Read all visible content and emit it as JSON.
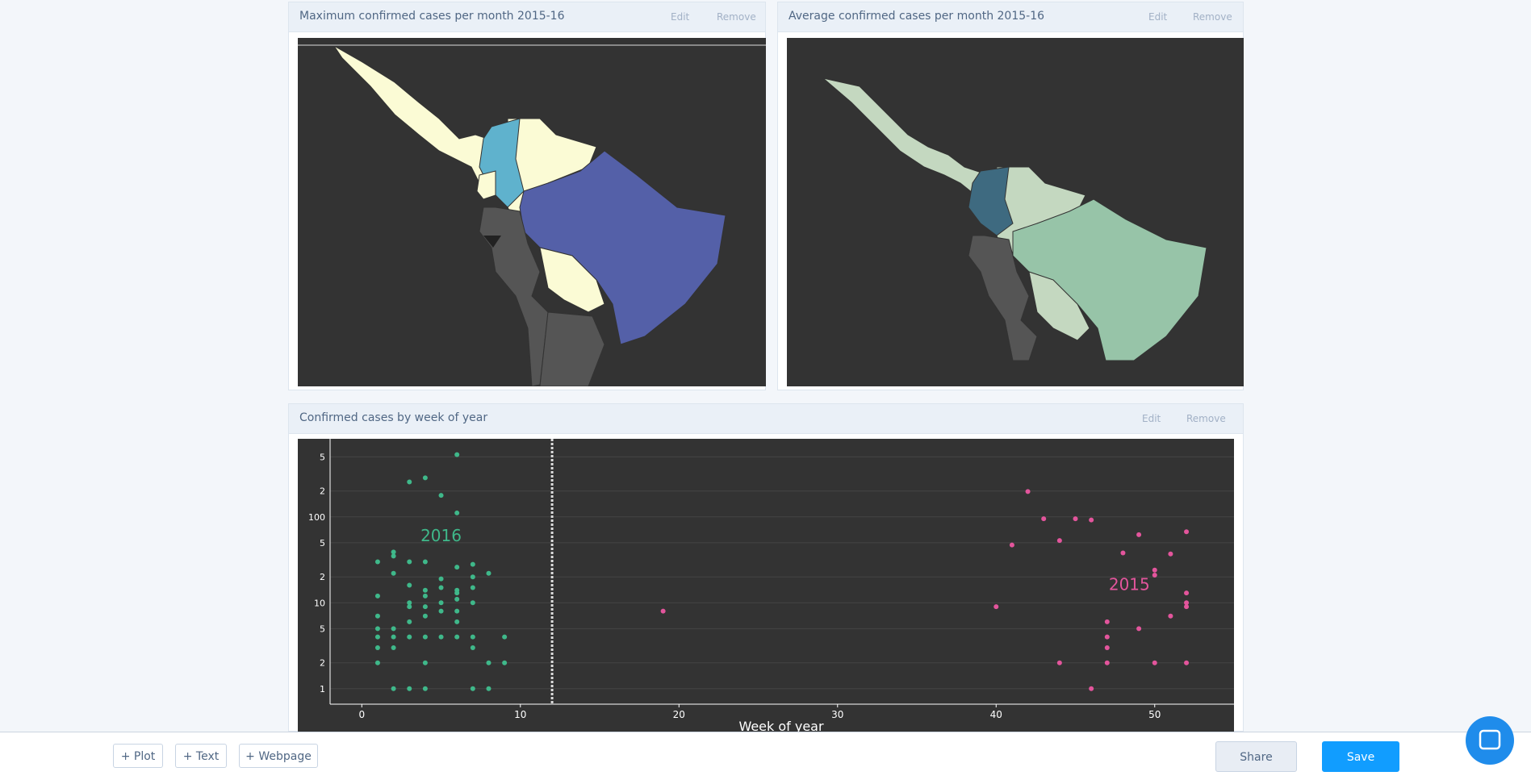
{
  "panels": [
    {
      "title": "Maximum confirmed cases per month 2015-16",
      "edit": "Edit",
      "remove": "Remove"
    },
    {
      "title": "Average confirmed cases per month 2015-16",
      "edit": "Edit",
      "remove": "Remove"
    },
    {
      "title": "Confirmed cases by week of year",
      "edit": "Edit",
      "remove": "Remove"
    }
  ],
  "chart_data": {
    "type": "scatter",
    "x_label": "Week of year",
    "log_y": true,
    "grid": true,
    "xlim": [
      -2,
      55
    ],
    "ylim": [
      0.66,
      810
    ],
    "xticks": [
      0,
      10,
      20,
      30,
      40,
      50
    ],
    "yticks": [
      1,
      2,
      5,
      10,
      {
        "value": 20,
        "label": "2"
      },
      {
        "value": 50,
        "label": "5"
      },
      100,
      {
        "value": 200,
        "label": "2"
      },
      {
        "value": 500,
        "label": "5"
      }
    ],
    "reference_line_x": 12,
    "series": [
      {
        "name": "2016",
        "color": "#3fb88a",
        "x": [
          1,
          1,
          1,
          1,
          1,
          1,
          1,
          2,
          2,
          2,
          2,
          2,
          2,
          2,
          3,
          3,
          3,
          3,
          3,
          3,
          3,
          3,
          4,
          4,
          4,
          4,
          4,
          4,
          4,
          4,
          4,
          5,
          5,
          5,
          5,
          5,
          5,
          6,
          6,
          6,
          6,
          6,
          6,
          6,
          6,
          6,
          7,
          7,
          7,
          7,
          7,
          7,
          7,
          8,
          8,
          8,
          9,
          9
        ],
        "y": [
          30,
          12,
          7,
          5,
          4,
          3,
          2,
          39,
          35,
          22,
          5,
          4,
          3,
          1,
          255,
          30,
          16,
          10,
          9,
          6,
          4,
          1,
          285,
          30,
          14,
          12,
          9,
          7,
          4,
          2,
          1,
          178,
          19,
          15,
          10,
          8,
          4,
          530,
          111,
          26,
          14,
          13,
          11,
          8,
          6,
          4,
          28,
          20,
          15,
          10,
          4,
          3,
          1,
          22,
          2,
          1,
          4,
          2
        ]
      },
      {
        "name": "2015",
        "color": "#e3559c",
        "x": [
          19,
          40,
          41,
          42,
          43,
          44,
          44,
          45,
          46,
          46,
          47,
          47,
          47,
          47,
          48,
          49,
          49,
          50,
          50,
          50,
          51,
          51,
          52,
          52,
          52,
          52,
          52
        ],
        "y": [
          8,
          9,
          47,
          197,
          95,
          53,
          2,
          95,
          92,
          1,
          6,
          4,
          3,
          2,
          38,
          62,
          5,
          24,
          21,
          2,
          37,
          7,
          67,
          13,
          10,
          9,
          2
        ]
      }
    ]
  },
  "toolbar": {
    "add_buttons": [
      "+ Plot",
      "+ Text",
      "+ Webpage"
    ],
    "share": "Share",
    "save": "Save"
  }
}
